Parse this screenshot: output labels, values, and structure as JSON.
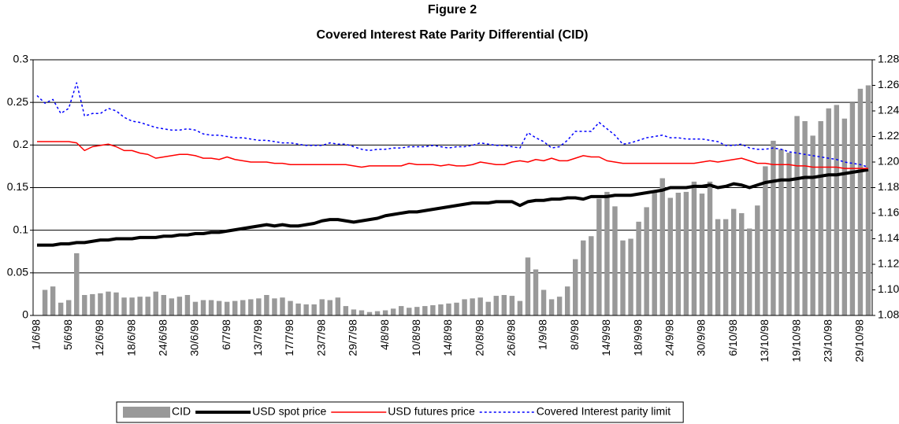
{
  "chart_data": {
    "type": "bar",
    "title": "Figure 2",
    "subtitle": "Covered Interest Rate Parity Differential (CID)",
    "categories": [
      "1/6/98",
      null,
      null,
      null,
      "5/6/98",
      null,
      null,
      null,
      "12/6/98",
      null,
      null,
      null,
      "18/6/98",
      null,
      null,
      null,
      "24/6/98",
      null,
      null,
      null,
      "30/6/98",
      null,
      null,
      null,
      "6/7/98",
      null,
      null,
      null,
      "13/7/98",
      null,
      null,
      null,
      "17/7/98",
      null,
      null,
      null,
      "23/7/98",
      null,
      null,
      null,
      "29/7/98",
      null,
      null,
      null,
      "4/8/98",
      null,
      null,
      null,
      "10/8/98",
      null,
      null,
      null,
      "14/8/98",
      null,
      null,
      null,
      "20/8/98",
      null,
      null,
      null,
      "26/8/98",
      null,
      null,
      null,
      "1/9/98",
      null,
      null,
      null,
      "8/9/98",
      null,
      null,
      null,
      "14/9/98",
      null,
      null,
      null,
      "18/9/98",
      null,
      null,
      null,
      "24/9/98",
      null,
      null,
      null,
      "30/9/98",
      null,
      null,
      null,
      "6/10/98",
      null,
      null,
      null,
      "13/10/98",
      null,
      null,
      null,
      "19/10/98",
      null,
      null,
      null,
      "23/10/98",
      null,
      null,
      null,
      "29/10/98",
      null
    ],
    "series": [
      {
        "name": "CID",
        "type": "bar",
        "color": "#999999",
        "values": [
          0,
          0.03,
          0.034,
          0.015,
          0.018,
          0.073,
          0.024,
          0.025,
          0.026,
          0.028,
          0.027,
          0.021,
          0.021,
          0.022,
          0.022,
          0.028,
          0.024,
          0.02,
          0.022,
          0.024,
          0.016,
          0.018,
          0.018,
          0.017,
          0.016,
          0.017,
          0.018,
          0.019,
          0.02,
          0.024,
          0.02,
          0.021,
          0.017,
          0.014,
          0.013,
          0.013,
          0.019,
          0.018,
          0.021,
          0.011,
          0.007,
          0.006,
          0.004,
          0.005,
          0.006,
          0.008,
          0.011,
          0.009,
          0.01,
          0.011,
          0.012,
          0.013,
          0.014,
          0.015,
          0.019,
          0.02,
          0.021,
          0.016,
          0.023,
          0.024,
          0.023,
          0.017,
          0.068,
          0.054,
          0.03,
          0.019,
          0.022,
          0.034,
          0.066,
          0.088,
          0.093,
          0.137,
          0.145,
          0.128,
          0.088,
          0.09,
          0.11,
          0.127,
          0.146,
          0.161,
          0.138,
          0.144,
          0.145,
          0.157,
          0.143,
          0.157,
          0.113,
          0.113,
          0.125,
          0.12,
          0.102,
          0.129,
          0.175,
          0.205,
          0.195,
          0.191,
          0.234,
          0.228,
          0.211,
          0.228,
          0.243,
          0.247,
          0.231,
          0.25,
          0.266,
          0.27
        ]
      },
      {
        "name": "USD spot price",
        "type": "line",
        "axis": "y2",
        "style": "thick",
        "color": "#000000",
        "values": [
          1.135,
          1.135,
          1.135,
          1.136,
          1.136,
          1.137,
          1.137,
          1.138,
          1.139,
          1.139,
          1.14,
          1.14,
          1.14,
          1.141,
          1.141,
          1.141,
          1.142,
          1.142,
          1.143,
          1.143,
          1.144,
          1.144,
          1.145,
          1.145,
          1.146,
          1.147,
          1.148,
          1.149,
          1.15,
          1.151,
          1.15,
          1.151,
          1.15,
          1.15,
          1.151,
          1.152,
          1.154,
          1.155,
          1.155,
          1.154,
          1.153,
          1.154,
          1.155,
          1.156,
          1.158,
          1.159,
          1.16,
          1.161,
          1.161,
          1.162,
          1.163,
          1.164,
          1.165,
          1.166,
          1.167,
          1.168,
          1.168,
          1.168,
          1.169,
          1.169,
          1.169,
          1.166,
          1.169,
          1.17,
          1.17,
          1.171,
          1.171,
          1.172,
          1.172,
          1.171,
          1.173,
          1.173,
          1.173,
          1.174,
          1.174,
          1.174,
          1.175,
          1.176,
          1.177,
          1.178,
          1.18,
          1.18,
          1.18,
          1.181,
          1.181,
          1.182,
          1.18,
          1.181,
          1.183,
          1.182,
          1.18,
          1.182,
          1.184,
          1.185,
          1.186,
          1.186,
          1.187,
          1.188,
          1.188,
          1.189,
          1.19,
          1.19,
          1.191,
          1.192,
          1.193,
          1.194
        ]
      },
      {
        "name": "USD futures price",
        "type": "line",
        "axis": "y2",
        "style": "solid",
        "color": "#ff0000",
        "values": [
          1.216,
          1.216,
          1.216,
          1.216,
          1.216,
          1.215,
          1.209,
          1.212,
          1.213,
          1.214,
          1.212,
          1.209,
          1.209,
          1.207,
          1.206,
          1.203,
          1.204,
          1.205,
          1.206,
          1.206,
          1.205,
          1.203,
          1.203,
          1.202,
          1.204,
          1.202,
          1.201,
          1.2,
          1.2,
          1.2,
          1.199,
          1.199,
          1.198,
          1.198,
          1.198,
          1.198,
          1.198,
          1.198,
          1.198,
          1.198,
          1.197,
          1.196,
          1.197,
          1.197,
          1.197,
          1.197,
          1.197,
          1.199,
          1.198,
          1.198,
          1.198,
          1.197,
          1.198,
          1.197,
          1.197,
          1.198,
          1.2,
          1.199,
          1.198,
          1.198,
          1.2,
          1.201,
          1.2,
          1.202,
          1.201,
          1.203,
          1.201,
          1.201,
          1.203,
          1.205,
          1.204,
          1.204,
          1.201,
          1.2,
          1.199,
          1.199,
          1.199,
          1.199,
          1.199,
          1.199,
          1.199,
          1.199,
          1.199,
          1.199,
          1.2,
          1.201,
          1.2,
          1.201,
          1.202,
          1.203,
          1.201,
          1.199,
          1.199,
          1.198,
          1.198,
          1.198,
          1.197,
          1.197,
          1.196,
          1.196,
          1.196,
          1.196,
          1.195,
          1.195,
          1.195,
          1.195
        ]
      },
      {
        "name": "Covered Interest parity limit",
        "type": "line",
        "axis": "y2",
        "style": "dotted",
        "color": "#0000ff",
        "values": [
          1.252,
          1.246,
          1.249,
          1.238,
          1.242,
          1.262,
          1.236,
          1.238,
          1.238,
          1.242,
          1.24,
          1.235,
          1.232,
          1.231,
          1.229,
          1.227,
          1.226,
          1.225,
          1.225,
          1.226,
          1.225,
          1.222,
          1.221,
          1.221,
          1.22,
          1.219,
          1.219,
          1.218,
          1.217,
          1.217,
          1.216,
          1.215,
          1.215,
          1.214,
          1.213,
          1.213,
          1.213,
          1.215,
          1.214,
          1.214,
          1.212,
          1.21,
          1.209,
          1.21,
          1.21,
          1.211,
          1.211,
          1.212,
          1.212,
          1.212,
          1.213,
          1.212,
          1.211,
          1.212,
          1.212,
          1.213,
          1.215,
          1.214,
          1.213,
          1.213,
          1.212,
          1.211,
          1.223,
          1.219,
          1.216,
          1.211,
          1.212,
          1.217,
          1.224,
          1.224,
          1.224,
          1.231,
          1.226,
          1.221,
          1.214,
          1.215,
          1.217,
          1.219,
          1.22,
          1.221,
          1.219,
          1.219,
          1.218,
          1.218,
          1.218,
          1.217,
          1.216,
          1.213,
          1.213,
          1.214,
          1.211,
          1.21,
          1.21,
          1.211,
          1.21,
          1.208,
          1.207,
          1.206,
          1.205,
          1.204,
          1.203,
          1.202,
          1.2,
          1.199,
          1.198,
          1.196
        ]
      }
    ],
    "ylim": [
      0,
      0.3
    ],
    "yticks": [
      0,
      0.05,
      0.1,
      0.15,
      0.2,
      0.25,
      0.3
    ],
    "y2lim": [
      1.08,
      1.28
    ],
    "y2ticks": [
      1.08,
      {
        "value": 1.1,
        "label": "1.10"
      },
      1.12,
      1.14,
      1.16,
      1.18,
      {
        "value": 1.2,
        "label": "1.20"
      },
      1.22,
      1.24,
      1.26,
      1.28
    ],
    "grid": true,
    "legend": "bottom"
  }
}
